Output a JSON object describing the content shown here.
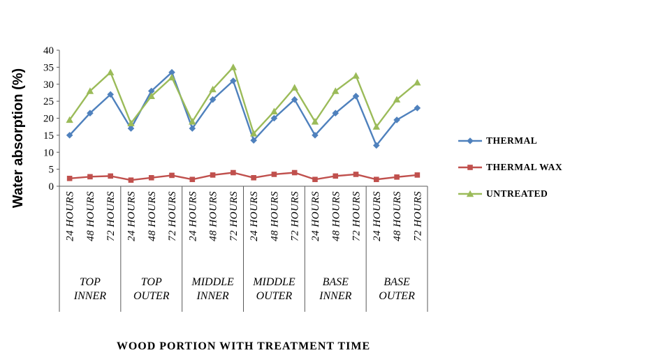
{
  "chart_data": {
    "type": "line",
    "title": "",
    "ylabel": "Water absorption (%)",
    "xlabel": "WOOD PORTION WITH TREATMENT TIME",
    "ylim": [
      0,
      40
    ],
    "yticks": [
      0,
      5,
      10,
      15,
      20,
      25,
      30,
      35,
      40
    ],
    "axis_color": "#595959",
    "grid": false,
    "legend_position": "right",
    "subcategories": [
      "24 HOURS",
      "48 HOURS",
      "72 HOURS"
    ],
    "groups": [
      {
        "label": "TOP INNER",
        "label_lines": [
          "TOP",
          "INNER"
        ]
      },
      {
        "label": "TOP OUTER",
        "label_lines": [
          "TOP",
          "OUTER"
        ]
      },
      {
        "label": "MIDDLE INNER",
        "label_lines": [
          "MIDDLE",
          "INNER"
        ]
      },
      {
        "label": "MIDDLE OUTER",
        "label_lines": [
          "MIDDLE",
          "OUTER"
        ]
      },
      {
        "label": "BASE INNER",
        "label_lines": [
          "BASE",
          "INNER"
        ]
      },
      {
        "label": "BASE OUTER",
        "label_lines": [
          "BASE",
          "OUTER"
        ]
      }
    ],
    "categories": [
      "24 HOURS",
      "48 HOURS",
      "72 HOURS",
      "24 HOURS",
      "48 HOURS",
      "72 HOURS",
      "24 HOURS",
      "48 HOURS",
      "72 HOURS",
      "24 HOURS",
      "48 HOURS",
      "72 HOURS",
      "24 HOURS",
      "48 HOURS",
      "72 HOURS",
      "24 HOURS",
      "48 HOURS",
      "72 HOURS"
    ],
    "series": [
      {
        "name": "THERMAL",
        "color": "#4F81BD",
        "marker": "diamond",
        "values": [
          15,
          21.5,
          27,
          17,
          28,
          33.5,
          17,
          25.5,
          31,
          13.5,
          20,
          25.5,
          15,
          21.5,
          26.5,
          12,
          19.5,
          23
        ]
      },
      {
        "name": "THERMAL WAX",
        "color": "#C0504D",
        "marker": "square",
        "values": [
          2.3,
          2.8,
          3,
          1.8,
          2.5,
          3.2,
          2,
          3.3,
          4,
          2.5,
          3.5,
          4,
          2,
          3,
          3.5,
          2,
          2.7,
          3.3
        ]
      },
      {
        "name": "UNTREATED",
        "color": "#9BBB59",
        "marker": "triangle",
        "values": [
          19.5,
          28,
          33.5,
          18.5,
          26.5,
          32,
          19,
          28.5,
          35,
          15.5,
          22,
          29,
          19,
          28,
          32.5,
          17.5,
          25.5,
          30.5
        ]
      }
    ]
  }
}
